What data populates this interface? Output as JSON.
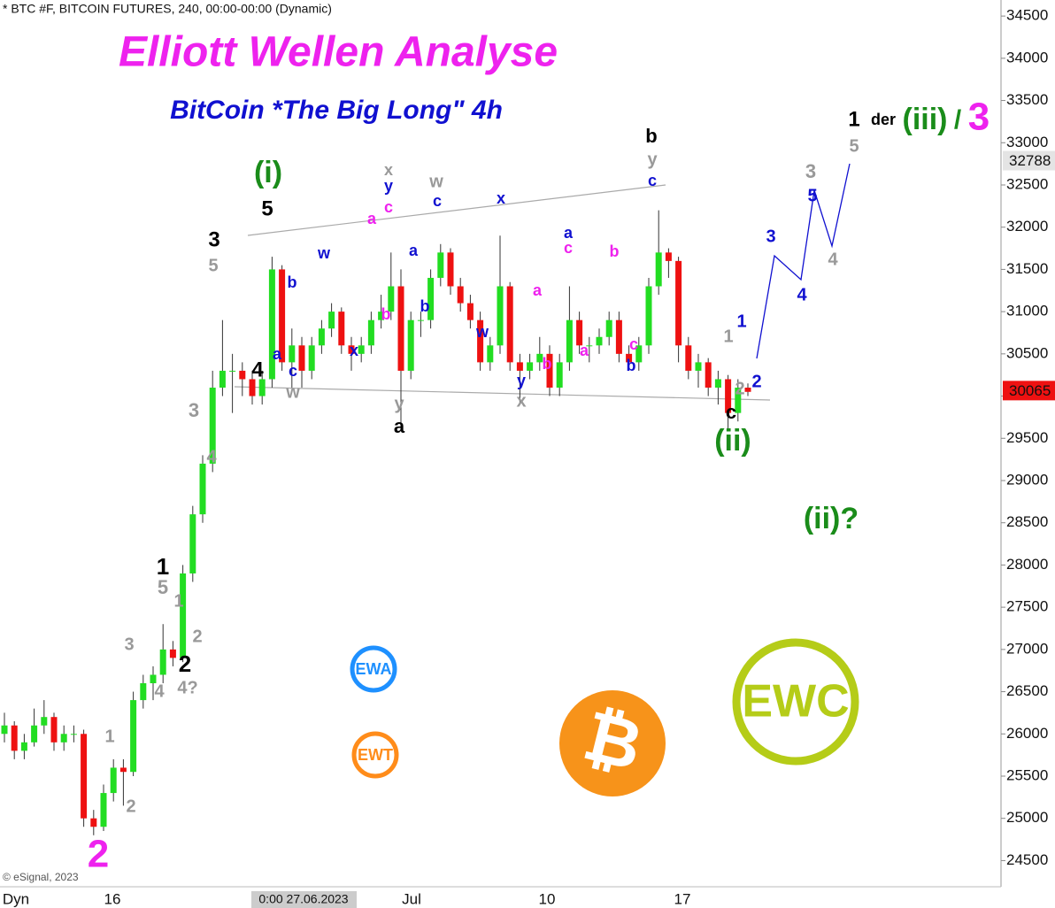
{
  "chart_data": {
    "type": "candlestick",
    "header": "* BTC #F, BITCOIN FUTURES, 240, 00:00-00:00 (Dynamic)",
    "title": "Elliott Wellen Analyse",
    "subtitle": "BitCoin *The Big Long\" 4h",
    "watermark": "© eSignal, 2023",
    "ylim": [
      24190,
      34690
    ],
    "yticks": [
      24500,
      25000,
      25500,
      26000,
      26500,
      27000,
      27500,
      28000,
      28500,
      29000,
      29500,
      30000,
      30500,
      31000,
      31500,
      32000,
      32500,
      33000,
      33500,
      34000,
      34500
    ],
    "x_labels": [
      "Dyn",
      "16",
      "0:00 27.06.2023",
      "Jul",
      "10",
      "17"
    ],
    "up_color": "#22dd22",
    "down_color": "#ee1111",
    "price_markers": [
      {
        "value": 32788,
        "color": "#e4e4e4",
        "text_color": "#111"
      },
      {
        "value": 30065,
        "color": "#ee1111",
        "text_color": "#fff"
      }
    ],
    "ohlc": [
      [
        26000,
        26250,
        25900,
        26100
      ],
      [
        26100,
        26150,
        25700,
        25800
      ],
      [
        25800,
        26000,
        25700,
        25900
      ],
      [
        25900,
        26300,
        25850,
        26100
      ],
      [
        26100,
        26400,
        26000,
        26200
      ],
      [
        26200,
        26250,
        25800,
        25900
      ],
      [
        25900,
        26100,
        25800,
        26000
      ],
      [
        26000,
        26100,
        25900,
        26000
      ],
      [
        26000,
        26050,
        24900,
        25000
      ],
      [
        25000,
        25100,
        24800,
        24900
      ],
      [
        24900,
        25400,
        24850,
        25300
      ],
      [
        25300,
        25700,
        25200,
        25600
      ],
      [
        25600,
        25700,
        25150,
        25550
      ],
      [
        25550,
        26500,
        25500,
        26400
      ],
      [
        26400,
        26700,
        26300,
        26600
      ],
      [
        26600,
        26800,
        26400,
        26700
      ],
      [
        26700,
        27300,
        26600,
        27000
      ],
      [
        27000,
        27100,
        26800,
        26900
      ],
      [
        26900,
        28000,
        26850,
        27900
      ],
      [
        27900,
        28700,
        27800,
        28600
      ],
      [
        28600,
        29300,
        28500,
        29200
      ],
      [
        29200,
        30300,
        29100,
        30100
      ],
      [
        30100,
        30900,
        30000,
        30300
      ],
      [
        30300,
        30500,
        29800,
        30300
      ],
      [
        30300,
        30400,
        30000,
        30200
      ],
      [
        30200,
        30300,
        29900,
        30000
      ],
      [
        30000,
        30300,
        29900,
        30200
      ],
      [
        30200,
        31650,
        30100,
        31500
      ],
      [
        31500,
        31550,
        30300,
        30400
      ],
      [
        30400,
        30800,
        30100,
        30600
      ],
      [
        30600,
        30700,
        30100,
        30300
      ],
      [
        30300,
        30700,
        30200,
        30600
      ],
      [
        30600,
        30900,
        30500,
        30800
      ],
      [
        30800,
        31100,
        30700,
        31000
      ],
      [
        31000,
        31050,
        30500,
        30600
      ],
      [
        30600,
        30700,
        30300,
        30500
      ],
      [
        30500,
        30700,
        30400,
        30600
      ],
      [
        30600,
        31000,
        30500,
        30900
      ],
      [
        30900,
        31200,
        30800,
        31000
      ],
      [
        31000,
        31700,
        30900,
        31300
      ],
      [
        31300,
        31500,
        29600,
        30300
      ],
      [
        30300,
        31000,
        30200,
        30900
      ],
      [
        30900,
        31000,
        30700,
        30900
      ],
      [
        30900,
        31500,
        30800,
        31400
      ],
      [
        31400,
        31800,
        31300,
        31700
      ],
      [
        31700,
        31750,
        31200,
        31300
      ],
      [
        31300,
        31400,
        31000,
        31100
      ],
      [
        31100,
        31200,
        30800,
        30900
      ],
      [
        30900,
        31000,
        30300,
        30400
      ],
      [
        30400,
        30700,
        30300,
        30600
      ],
      [
        30600,
        31900,
        30500,
        31300
      ],
      [
        31300,
        31350,
        30300,
        30400
      ],
      [
        30400,
        30500,
        29900,
        30300
      ],
      [
        30300,
        30500,
        30200,
        30400
      ],
      [
        30400,
        30700,
        30300,
        30500
      ],
      [
        30500,
        30600,
        30000,
        30100
      ],
      [
        30100,
        30500,
        30000,
        30400
      ],
      [
        30400,
        31300,
        30300,
        30900
      ],
      [
        30900,
        31000,
        30500,
        30600
      ],
      [
        30600,
        30700,
        30400,
        30600
      ],
      [
        30600,
        30800,
        30500,
        30700
      ],
      [
        30700,
        31000,
        30600,
        30900
      ],
      [
        30900,
        31000,
        30400,
        30500
      ],
      [
        30500,
        30600,
        30300,
        30400
      ],
      [
        30400,
        30700,
        30300,
        30600
      ],
      [
        30600,
        31400,
        30500,
        31300
      ],
      [
        31300,
        32200,
        31200,
        31700
      ],
      [
        31700,
        31750,
        31400,
        31600
      ],
      [
        31600,
        31650,
        30400,
        30600
      ],
      [
        30600,
        30700,
        30200,
        30300
      ],
      [
        30300,
        30500,
        30100,
        30400
      ],
      [
        30400,
        30450,
        30000,
        30100
      ],
      [
        30100,
        30300,
        29900,
        30200
      ],
      [
        30200,
        30250,
        29600,
        29800
      ],
      [
        29800,
        30200,
        29700,
        30100
      ],
      [
        30100,
        30150,
        30000,
        30050
      ]
    ],
    "annotations": [
      {
        "text": "(i)",
        "color": "#1a8c1a"
      },
      {
        "text": "5",
        "color": "#000"
      },
      {
        "text": "3",
        "color": "#000"
      },
      {
        "text": "5",
        "color": "#999"
      },
      {
        "text": "4",
        "color": "#000"
      },
      {
        "text": "a",
        "color": "#1010d0"
      },
      {
        "text": "c",
        "color": "#1010d0"
      },
      {
        "text": "w",
        "color": "#999"
      },
      {
        "text": "b",
        "color": "#1010d0"
      },
      {
        "text": "w",
        "color": "#1010d0"
      },
      {
        "text": "x",
        "color": "#999"
      },
      {
        "text": "y",
        "color": "#1010d0"
      },
      {
        "text": "c",
        "color": "#ee22ee"
      },
      {
        "text": "a",
        "color": "#ee22ee"
      },
      {
        "text": "b",
        "color": "#ee22ee"
      },
      {
        "text": "w",
        "color": "#999"
      },
      {
        "text": "c",
        "color": "#1010d0"
      },
      {
        "text": "a",
        "color": "#1010d0"
      },
      {
        "text": "b",
        "color": "#1010d0"
      },
      {
        "text": "x",
        "color": "#1010d0"
      },
      {
        "text": "w",
        "color": "#1010d0"
      },
      {
        "text": "x",
        "color": "#1010d0"
      },
      {
        "text": "y",
        "color": "#999"
      },
      {
        "text": "a",
        "color": "#000"
      },
      {
        "text": "a",
        "color": "#1010d0"
      },
      {
        "text": "c",
        "color": "#ee22ee"
      },
      {
        "text": "a",
        "color": "#ee22ee"
      },
      {
        "text": "b",
        "color": "#ee22ee"
      },
      {
        "text": "b",
        "color": "#ee22ee"
      },
      {
        "text": "a",
        "color": "#ee22ee"
      },
      {
        "text": "c",
        "color": "#ee22ee"
      },
      {
        "text": "b",
        "color": "#1010d0"
      },
      {
        "text": "y",
        "color": "#1010d0"
      },
      {
        "text": "x",
        "color": "#999"
      },
      {
        "text": "b",
        "color": "#000"
      },
      {
        "text": "y",
        "color": "#999"
      },
      {
        "text": "c",
        "color": "#1010d0"
      },
      {
        "text": "1",
        "color": "#1010d0"
      },
      {
        "text": "1",
        "color": "#999"
      },
      {
        "text": "2",
        "color": "#999"
      },
      {
        "text": "2",
        "color": "#1010d0"
      },
      {
        "text": "c",
        "color": "#000"
      },
      {
        "text": "(ii)",
        "color": "#1a8c1a"
      },
      {
        "text": "3",
        "color": "#1010d0"
      },
      {
        "text": "4",
        "color": "#1010d0"
      },
      {
        "text": "5",
        "color": "#1010d0"
      },
      {
        "text": "3",
        "color": "#999"
      },
      {
        "text": "4",
        "color": "#999"
      },
      {
        "text": "1",
        "color": "#000"
      },
      {
        "text": "5",
        "color": "#999"
      },
      {
        "text": "der",
        "color": "#000"
      },
      {
        "text": "(iii)",
        "color": "#1a8c1a"
      },
      {
        "text": "/",
        "color": "#1a8c1a"
      },
      {
        "text": "3",
        "color": "#ee22ee"
      },
      {
        "text": "(ii)?",
        "color": "#1a8c1a"
      },
      {
        "text": "3",
        "color": "#999"
      },
      {
        "text": "4",
        "color": "#999"
      },
      {
        "text": "1",
        "color": "#000"
      },
      {
        "text": "5",
        "color": "#999"
      },
      {
        "text": "1",
        "color": "#999"
      },
      {
        "text": "2",
        "color": "#999"
      },
      {
        "text": "2",
        "color": "#000"
      },
      {
        "text": "4?",
        "color": "#999"
      },
      {
        "text": "3",
        "color": "#999"
      },
      {
        "text": "4",
        "color": "#999"
      },
      {
        "text": "1",
        "color": "#999"
      },
      {
        "text": "2",
        "color": "#999"
      },
      {
        "text": "2",
        "color": "#ee22ee"
      }
    ],
    "logos": [
      "EWA",
      "EWT",
      "₿",
      "EWC"
    ]
  }
}
